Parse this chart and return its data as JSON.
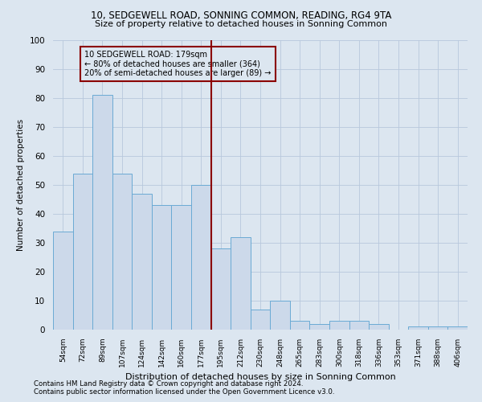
{
  "title1": "10, SEDGEWELL ROAD, SONNING COMMON, READING, RG4 9TA",
  "title2": "Size of property relative to detached houses in Sonning Common",
  "xlabel": "Distribution of detached houses by size in Sonning Common",
  "ylabel": "Number of detached properties",
  "footnote1": "Contains HM Land Registry data © Crown copyright and database right 2024.",
  "footnote2": "Contains public sector information licensed under the Open Government Licence v3.0.",
  "categories": [
    "54sqm",
    "72sqm",
    "89sqm",
    "107sqm",
    "124sqm",
    "142sqm",
    "160sqm",
    "177sqm",
    "195sqm",
    "212sqm",
    "230sqm",
    "248sqm",
    "265sqm",
    "283sqm",
    "300sqm",
    "318sqm",
    "336sqm",
    "353sqm",
    "371sqm",
    "388sqm",
    "406sqm"
  ],
  "values": [
    34,
    54,
    81,
    54,
    47,
    43,
    43,
    50,
    28,
    32,
    7,
    10,
    3,
    2,
    3,
    3,
    2,
    0,
    1,
    1,
    1
  ],
  "bar_color": "#ccd9ea",
  "bar_edge_color": "#6aaad4",
  "grid_color": "#b8c8dc",
  "background_color": "#dce6f0",
  "vline_x": 7.5,
  "vline_color": "#8b0000",
  "annotation_line1": "10 SEDGEWELL ROAD: 179sqm",
  "annotation_line2": "← 80% of detached houses are smaller (364)",
  "annotation_line3": "20% of semi-detached houses are larger (89) →",
  "annotation_box_color": "#8b0000",
  "ylim": [
    0,
    100
  ],
  "yticks": [
    0,
    10,
    20,
    30,
    40,
    50,
    60,
    70,
    80,
    90,
    100
  ]
}
